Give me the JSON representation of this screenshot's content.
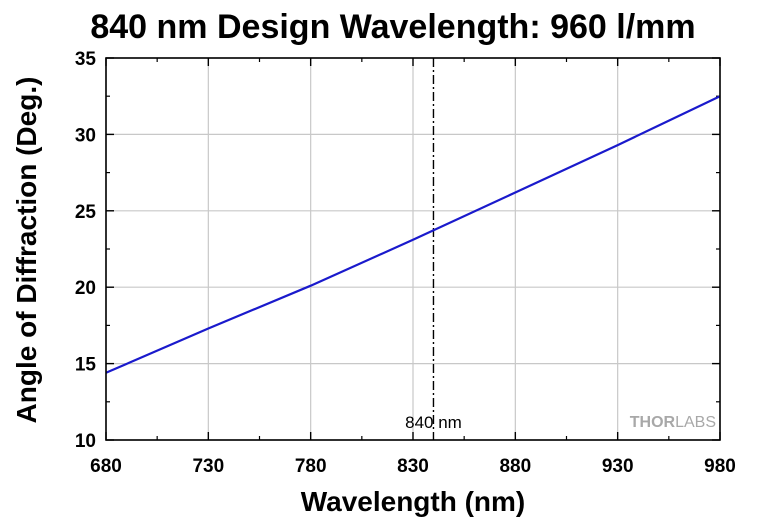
{
  "chart_data": {
    "type": "line",
    "title": "840 nm Design Wavelength: 960 l/mm",
    "xlabel": "Wavelength (nm)",
    "ylabel": "Angle of Diffraction (Deg.)",
    "xlim": [
      680,
      980
    ],
    "ylim": [
      10,
      35
    ],
    "x_ticks": [
      680,
      730,
      780,
      830,
      880,
      930,
      980
    ],
    "y_ticks": [
      10,
      15,
      20,
      25,
      30,
      35
    ],
    "grid": true,
    "series": [
      {
        "color": "#1a1acc",
        "x": [
          680,
          730,
          780,
          830,
          880,
          930,
          980
        ],
        "y": [
          14.4,
          17.3,
          20.1,
          23.1,
          26.2,
          29.3,
          32.5
        ]
      }
    ],
    "reference_line": {
      "x": 840,
      "label": "840 nm",
      "style": "dash-dot"
    },
    "watermark": "THORLABS"
  }
}
